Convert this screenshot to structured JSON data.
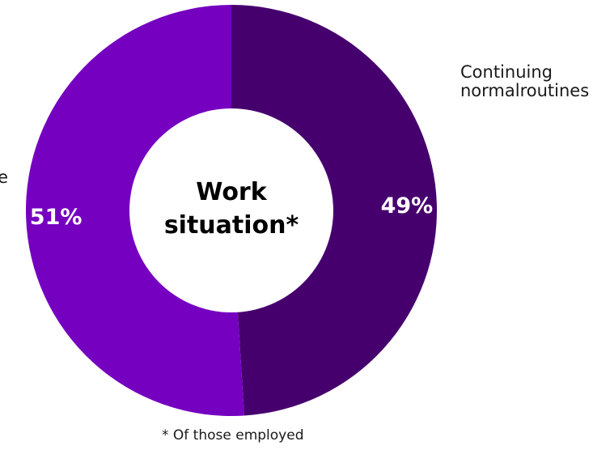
{
  "chart_data": {
    "type": "pie",
    "donut": true,
    "center_label": "Work situation*",
    "slices": [
      {
        "name": "Continuing normal routines",
        "value": 49,
        "label": "49%",
        "color": "#46006E"
      },
      {
        "name": "",
        "value": 51,
        "label": "51%",
        "color": "#7500C0"
      }
    ],
    "footnote": "* Of those employed"
  }
}
